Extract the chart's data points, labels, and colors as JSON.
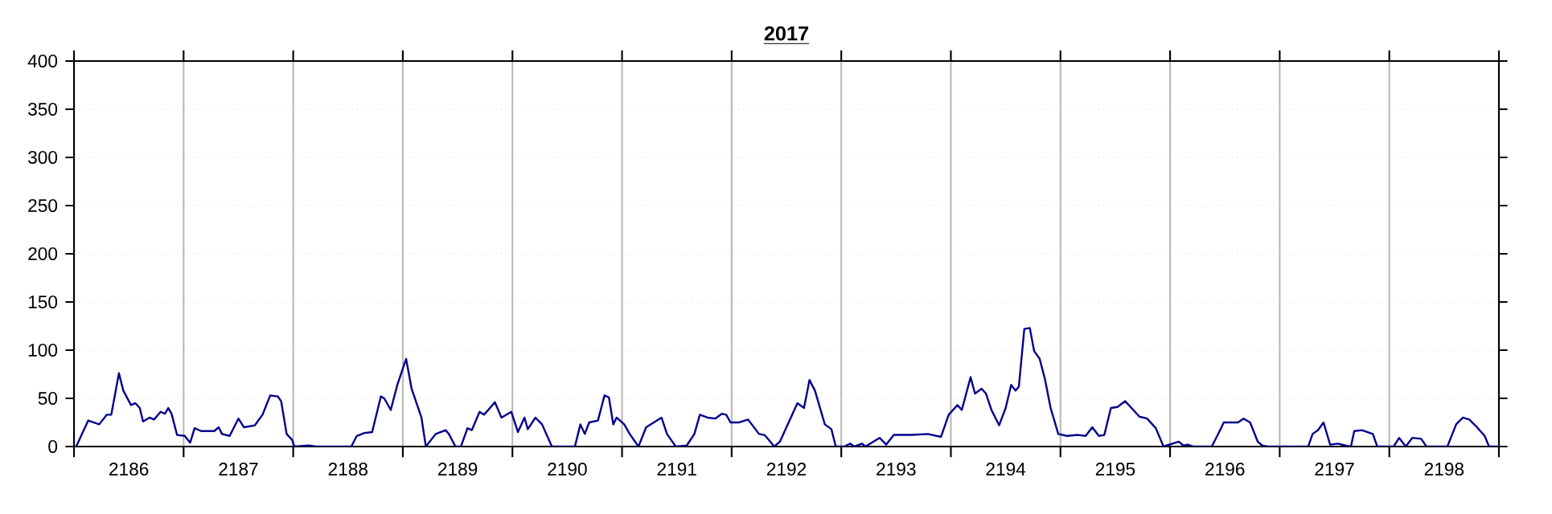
{
  "chart_data": {
    "type": "line",
    "title": "2017",
    "x": [
      2185.52,
      2185.63,
      2185.73,
      2185.8,
      2185.84,
      2185.91,
      2185.95,
      2186.02,
      2186.06,
      2186.1,
      2186.13,
      2186.19,
      2186.23,
      2186.29,
      2186.33,
      2186.36,
      2186.39,
      2186.44,
      2186.51,
      2186.56,
      2186.6,
      2186.66,
      2186.78,
      2186.82,
      2186.85,
      2186.92,
      2187.0,
      2187.05,
      2187.15,
      2187.22,
      2187.29,
      2187.36,
      2187.39,
      2187.44,
      2187.49,
      2187.51,
      2187.64,
      2187.71,
      2188.03,
      2188.08,
      2188.15,
      2188.22,
      2188.3,
      2188.33,
      2188.39,
      2188.45,
      2188.53,
      2188.58,
      2188.67,
      2188.71,
      2188.8,
      2188.89,
      2188.92,
      2188.98,
      2189.03,
      2189.09,
      2189.13,
      2189.2,
      2189.24,
      2189.28,
      2189.34,
      2189.4,
      2189.49,
      2189.55,
      2189.61,
      2189.64,
      2189.71,
      2189.77,
      2189.86,
      2190.07,
      2190.12,
      2190.16,
      2190.2,
      2190.28,
      2190.34,
      2190.38,
      2190.42,
      2190.45,
      2190.52,
      2190.57,
      2190.65,
      2190.72,
      2190.79,
      2190.86,
      2190.91,
      2190.99,
      2191.09,
      2191.16,
      2191.21,
      2191.28,
      2191.35,
      2191.41,
      2191.45,
      2191.49,
      2191.57,
      2191.65,
      2191.75,
      2191.8,
      2191.89,
      2191.94,
      2192.04,
      2192.1,
      2192.16,
      2192.21,
      2192.26,
      2192.35,
      2192.41,
      2192.45,
      2192.53,
      2192.58,
      2192.62,
      2192.69,
      2192.72,
      2192.85,
      2192.91,
      2192.98,
      2193.14,
      2193.29,
      2193.41,
      2193.48,
      2193.56,
      2193.6,
      2193.68,
      2193.72,
      2193.78,
      2193.82,
      2193.87,
      2193.94,
      2194.0,
      2194.05,
      2194.09,
      2194.12,
      2194.17,
      2194.22,
      2194.26,
      2194.31,
      2194.36,
      2194.41,
      2194.48,
      2194.56,
      2194.66,
      2194.73,
      2194.79,
      2194.85,
      2194.9,
      2194.96,
      2195.02,
      2195.09,
      2195.14,
      2195.22,
      2195.29,
      2195.37,
      2195.44,
      2195.58,
      2195.62,
      2195.66,
      2195.71,
      2195.88,
      2195.93,
      2195.99,
      2196.12,
      2196.17,
      2196.23,
      2196.3,
      2196.34,
      2196.39,
      2196.76,
      2196.8,
      2196.85,
      2196.9,
      2196.96,
      2197.03,
      2197.1,
      2197.15,
      2197.18,
      2197.25,
      2197.35,
      2197.39,
      2197.54,
      2197.59,
      2197.65,
      2197.71,
      2197.79,
      2197.84,
      2198.03,
      2198.11,
      2198.17,
      2198.23,
      2198.3,
      2198.37,
      2198.41,
      2198.5
    ],
    "series": [
      {
        "color": "#00008b",
        "values": [
          0,
          27,
          23,
          33,
          33,
          76,
          58,
          43,
          45,
          40,
          26,
          30,
          28,
          36,
          34,
          40,
          34,
          12,
          11,
          4,
          19,
          16,
          16,
          20,
          13,
          11,
          29,
          20,
          22,
          33,
          53,
          52,
          47,
          13,
          7,
          0,
          1,
          0,
          0,
          11,
          14,
          15,
          52,
          50,
          38,
          64,
          91,
          60,
          30,
          0,
          13,
          17,
          13,
          0,
          0,
          19,
          17,
          36,
          33,
          38,
          46,
          30,
          36,
          15,
          30,
          18,
          30,
          23,
          0,
          0,
          23,
          13,
          25,
          27,
          53,
          51,
          23,
          30,
          23,
          13,
          0,
          20,
          25,
          30,
          13,
          0,
          1,
          13,
          33,
          30,
          29,
          34,
          33,
          25,
          25,
          28,
          13,
          12,
          0,
          5,
          30,
          45,
          40,
          69,
          58,
          23,
          18,
          0,
          0,
          3,
          0,
          3,
          0,
          9,
          2,
          12,
          12,
          13,
          10,
          33,
          43,
          38,
          72,
          55,
          60,
          55,
          38,
          22,
          40,
          64,
          58,
          62,
          122,
          123,
          99,
          91,
          69,
          40,
          13,
          11,
          12,
          11,
          20,
          11,
          12,
          40,
          41,
          47,
          41,
          31,
          29,
          19,
          0,
          5,
          1,
          2,
          0,
          0,
          11,
          25,
          25,
          29,
          25,
          5,
          1,
          0,
          0,
          13,
          17,
          25,
          2,
          3,
          1,
          0,
          16,
          17,
          13,
          0,
          0,
          9,
          0,
          9,
          8,
          0,
          0,
          23,
          30,
          28,
          20,
          11,
          0,
          0
        ]
      }
    ],
    "xlim": [
      2185.5,
      2198.5
    ],
    "xticks": [
      {
        "value": 2185.5,
        "label": null
      },
      {
        "value": 2186,
        "label": "2186"
      },
      {
        "value": 2186.5,
        "label": null
      },
      {
        "value": 2187,
        "label": "2187"
      },
      {
        "value": 2187.5,
        "label": null
      },
      {
        "value": 2188,
        "label": "2188"
      },
      {
        "value": 2188.5,
        "label": null
      },
      {
        "value": 2189,
        "label": "2189"
      },
      {
        "value": 2189.5,
        "label": null
      },
      {
        "value": 2190,
        "label": "2190"
      },
      {
        "value": 2190.5,
        "label": null
      },
      {
        "value": 2191,
        "label": "2191"
      },
      {
        "value": 2191.5,
        "label": null
      },
      {
        "value": 2192,
        "label": "2192"
      },
      {
        "value": 2192.5,
        "label": null
      },
      {
        "value": 2193,
        "label": "2193"
      },
      {
        "value": 2193.5,
        "label": null
      },
      {
        "value": 2194,
        "label": "2194"
      },
      {
        "value": 2194.5,
        "label": null
      },
      {
        "value": 2195,
        "label": "2195"
      },
      {
        "value": 2195.5,
        "label": null
      },
      {
        "value": 2196,
        "label": "2196"
      },
      {
        "value": 2196.5,
        "label": null
      },
      {
        "value": 2197,
        "label": "2197"
      },
      {
        "value": 2197.5,
        "label": null
      },
      {
        "value": 2198,
        "label": "2198"
      },
      {
        "value": 2198.5,
        "label": null
      }
    ],
    "ylim": [
      0,
      400
    ],
    "yticks": [
      0,
      50,
      100,
      150,
      200,
      250,
      300,
      350,
      400
    ],
    "grid": true,
    "marker": "none",
    "line_style": "solid"
  }
}
